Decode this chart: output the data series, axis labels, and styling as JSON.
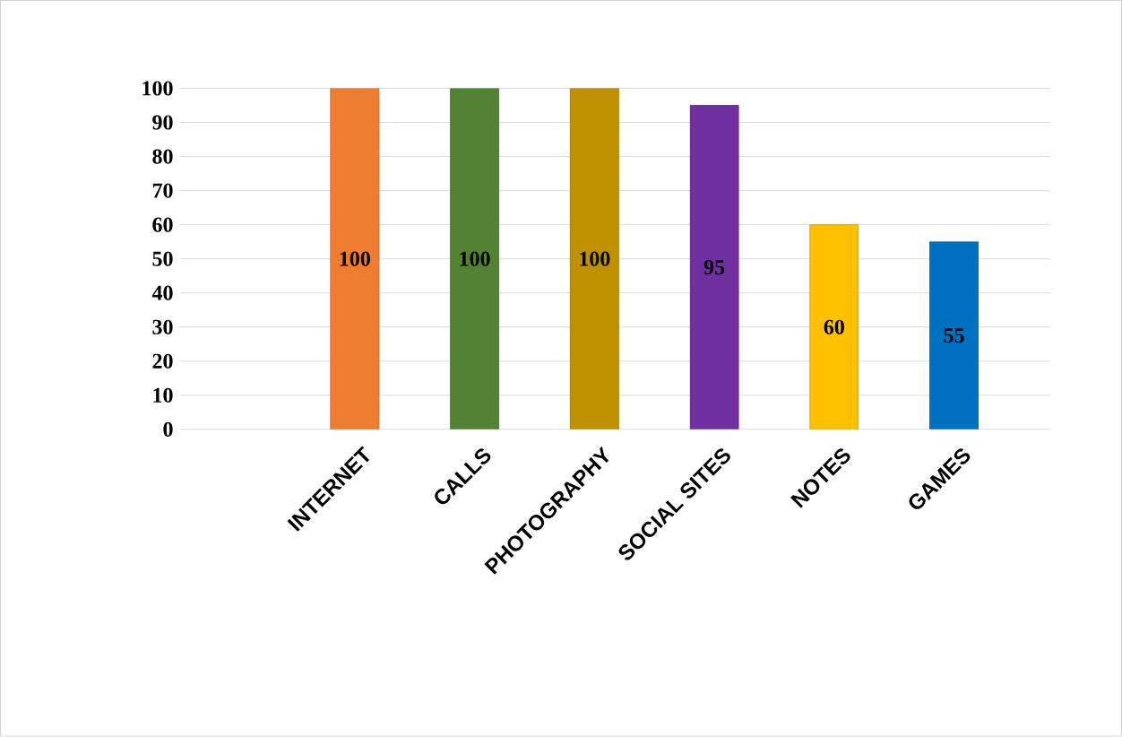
{
  "chart_data": {
    "type": "bar",
    "categories": [
      "INTERNET",
      "CALLS",
      "PHOTOGRAPHY",
      "SOCIAL SITES",
      "NOTES",
      "GAMES"
    ],
    "values": [
      100,
      100,
      100,
      95,
      60,
      55
    ],
    "colors": [
      "#ed7d31",
      "#548235",
      "#bf9000",
      "#7030a0",
      "#ffc000",
      "#0070c0"
    ],
    "ylim": [
      0,
      100
    ],
    "yticks": [
      0,
      10,
      20,
      30,
      40,
      50,
      60,
      70,
      80,
      90,
      100
    ],
    "grid": "y",
    "data_labels": true
  }
}
